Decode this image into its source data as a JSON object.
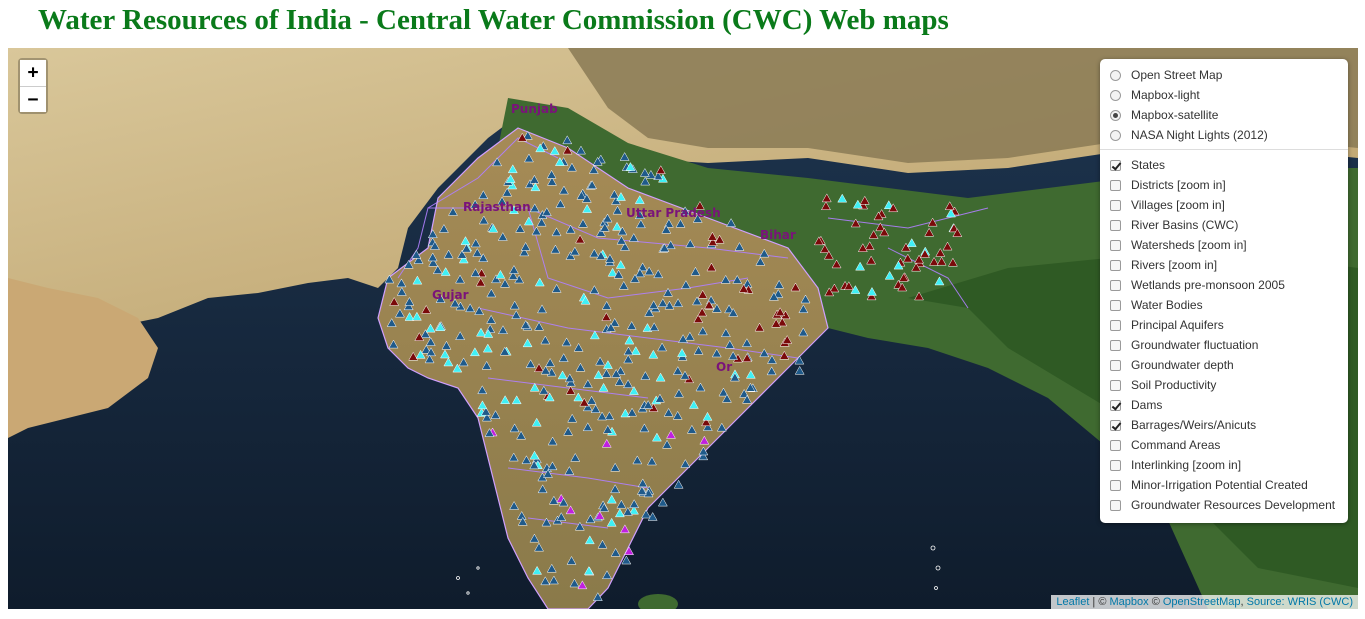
{
  "title": "Water Resources of India - Central Water Commission (CWC) Web maps",
  "zoom": {
    "in_label": "+",
    "out_label": "−"
  },
  "base_layers": [
    {
      "label": "Open Street Map",
      "selected": false
    },
    {
      "label": "Mapbox-light",
      "selected": false
    },
    {
      "label": "Mapbox-satellite",
      "selected": true
    },
    {
      "label": "NASA Night Lights (2012)",
      "selected": false
    }
  ],
  "overlays": [
    {
      "label": "States",
      "checked": true
    },
    {
      "label": "Districts [zoom in]",
      "checked": false
    },
    {
      "label": "Villages [zoom in]",
      "checked": false
    },
    {
      "label": "River Basins (CWC)",
      "checked": false
    },
    {
      "label": "Watersheds [zoom in]",
      "checked": false
    },
    {
      "label": "Rivers [zoom in]",
      "checked": false
    },
    {
      "label": "Wetlands pre-monsoon 2005",
      "checked": false
    },
    {
      "label": "Water Bodies",
      "checked": false
    },
    {
      "label": "Principal Aquifers",
      "checked": false
    },
    {
      "label": "Groundwater fluctuation",
      "checked": false
    },
    {
      "label": "Groundwater depth",
      "checked": false
    },
    {
      "label": "Soil Productivity",
      "checked": false
    },
    {
      "label": "Dams",
      "checked": true
    },
    {
      "label": "Barrages/Weirs/Anicuts",
      "checked": true
    },
    {
      "label": "Command Areas",
      "checked": false
    },
    {
      "label": "Interlinking [zoom in]",
      "checked": false
    },
    {
      "label": "Minor-Irrigation Potential Created",
      "checked": false
    },
    {
      "label": "Groundwater Resources Development",
      "checked": false
    }
  ],
  "state_labels": [
    "Punjab",
    "Rajasthan",
    "Uttar Pradesh",
    "Bihar",
    "Gujar",
    "Or"
  ],
  "attribution": {
    "leaflet": "Leaflet",
    "sep1": " | © ",
    "mapbox": "Mapbox",
    "sep2": " © ",
    "osm": "OpenStreetMap",
    "sep3": ", ",
    "source": "Source: WRIS (CWC)"
  },
  "colors": {
    "title": "#0a7a1a",
    "state_label": "#7a137a",
    "dam_marker": "#1f5a8a",
    "barrage_marker": "#7a0a0a",
    "cyan_marker": "#3ff0f5",
    "magenta_marker": "#c020e0",
    "state_border": "#b080ff"
  }
}
